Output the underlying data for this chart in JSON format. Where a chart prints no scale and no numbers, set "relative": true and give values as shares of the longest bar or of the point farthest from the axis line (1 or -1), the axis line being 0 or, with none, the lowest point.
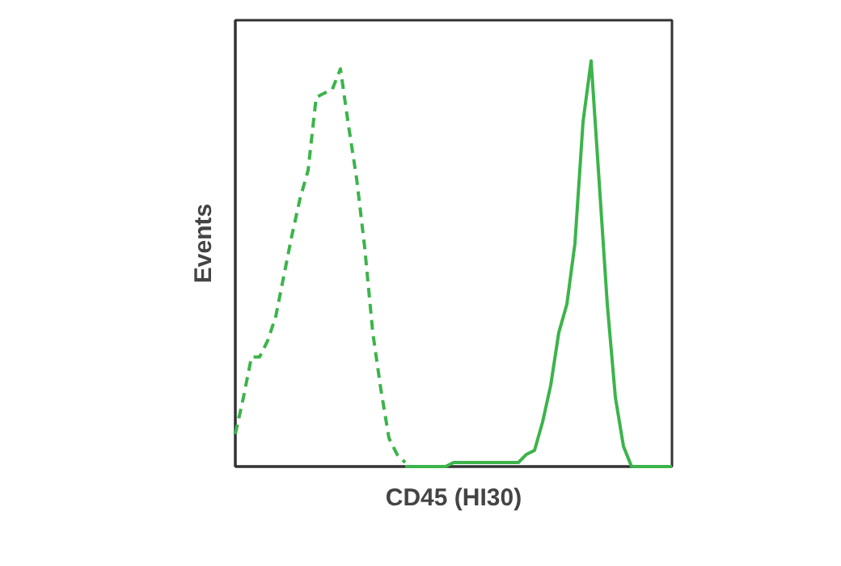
{
  "chart_data": {
    "type": "line",
    "relative": true,
    "xlabel": "CD45 (HI30)",
    "ylabel": "Events",
    "grid": false,
    "categories": [
      null,
      null,
      null,
      null,
      null,
      null,
      null,
      null,
      null,
      null,
      null,
      null,
      null,
      null,
      null,
      null,
      null,
      null,
      null,
      null,
      null,
      null,
      null,
      null,
      null,
      null,
      null,
      null,
      null,
      null,
      null,
      null,
      null,
      null,
      null,
      null,
      null,
      null,
      null,
      null,
      null,
      null,
      null,
      null,
      null,
      null,
      null,
      null,
      null,
      null,
      null,
      null,
      null,
      null,
      null
    ],
    "series": [
      {
        "color": "#3cb44b",
        "line_style": "dashed",
        "values": [
          0.08,
          0.17,
          0.27,
          0.27,
          0.31,
          0.37,
          0.47,
          0.57,
          0.66,
          0.73,
          0.91,
          0.92,
          0.93,
          0.98,
          0.84,
          0.71,
          0.54,
          0.33,
          0.19,
          0.07,
          0.03,
          0.01,
          null,
          null,
          null,
          null,
          null,
          null,
          null,
          null,
          null,
          null,
          null,
          null,
          null,
          null,
          null,
          null,
          null,
          null,
          null,
          null,
          null,
          null,
          null,
          null,
          null,
          null,
          null,
          null,
          null,
          null,
          null,
          null,
          null
        ]
      },
      {
        "color": "#3cb44b",
        "line_style": "solid",
        "values": [
          null,
          null,
          null,
          null,
          null,
          null,
          null,
          null,
          null,
          null,
          null,
          null,
          null,
          null,
          null,
          null,
          null,
          null,
          null,
          null,
          null,
          0,
          0,
          0,
          0,
          0,
          0,
          0.01,
          0.01,
          0.01,
          0.01,
          0.01,
          0.01,
          0.01,
          0.01,
          0.01,
          0.03,
          0.04,
          0.11,
          0.2,
          0.33,
          0.4,
          0.55,
          0.85,
          1.0,
          0.7,
          0.4,
          0.17,
          0.05,
          0,
          0,
          0,
          0,
          0,
          0
        ]
      }
    ]
  }
}
